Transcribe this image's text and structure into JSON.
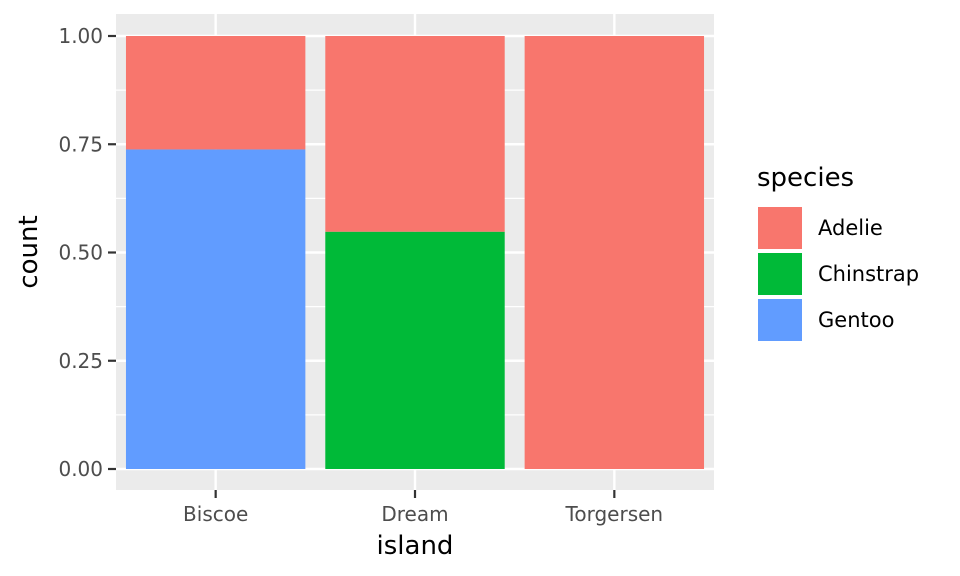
{
  "chart_data": {
    "type": "bar",
    "stacked": "fill",
    "categories": [
      "Biscoe",
      "Dream",
      "Torgersen"
    ],
    "series": [
      {
        "name": "Adelie",
        "color": "#F8766D",
        "values": [
          0.262,
          0.452,
          1.0
        ]
      },
      {
        "name": "Chinstrap",
        "color": "#00BA38",
        "values": [
          0.0,
          0.548,
          0.0
        ]
      },
      {
        "name": "Gentoo",
        "color": "#619CFF",
        "values": [
          0.738,
          0.0,
          0.0
        ]
      }
    ],
    "xlabel": "island",
    "ylabel": "count",
    "ylim": [
      0,
      1
    ],
    "yticks": [
      "0.00",
      "0.25",
      "0.50",
      "0.75",
      "1.00"
    ],
    "ytick_values": [
      0,
      0.25,
      0.5,
      0.75,
      1.0
    ],
    "legend": {
      "title": "species",
      "position": "right"
    },
    "grid": true,
    "panel_background": "#EBEBEB"
  }
}
